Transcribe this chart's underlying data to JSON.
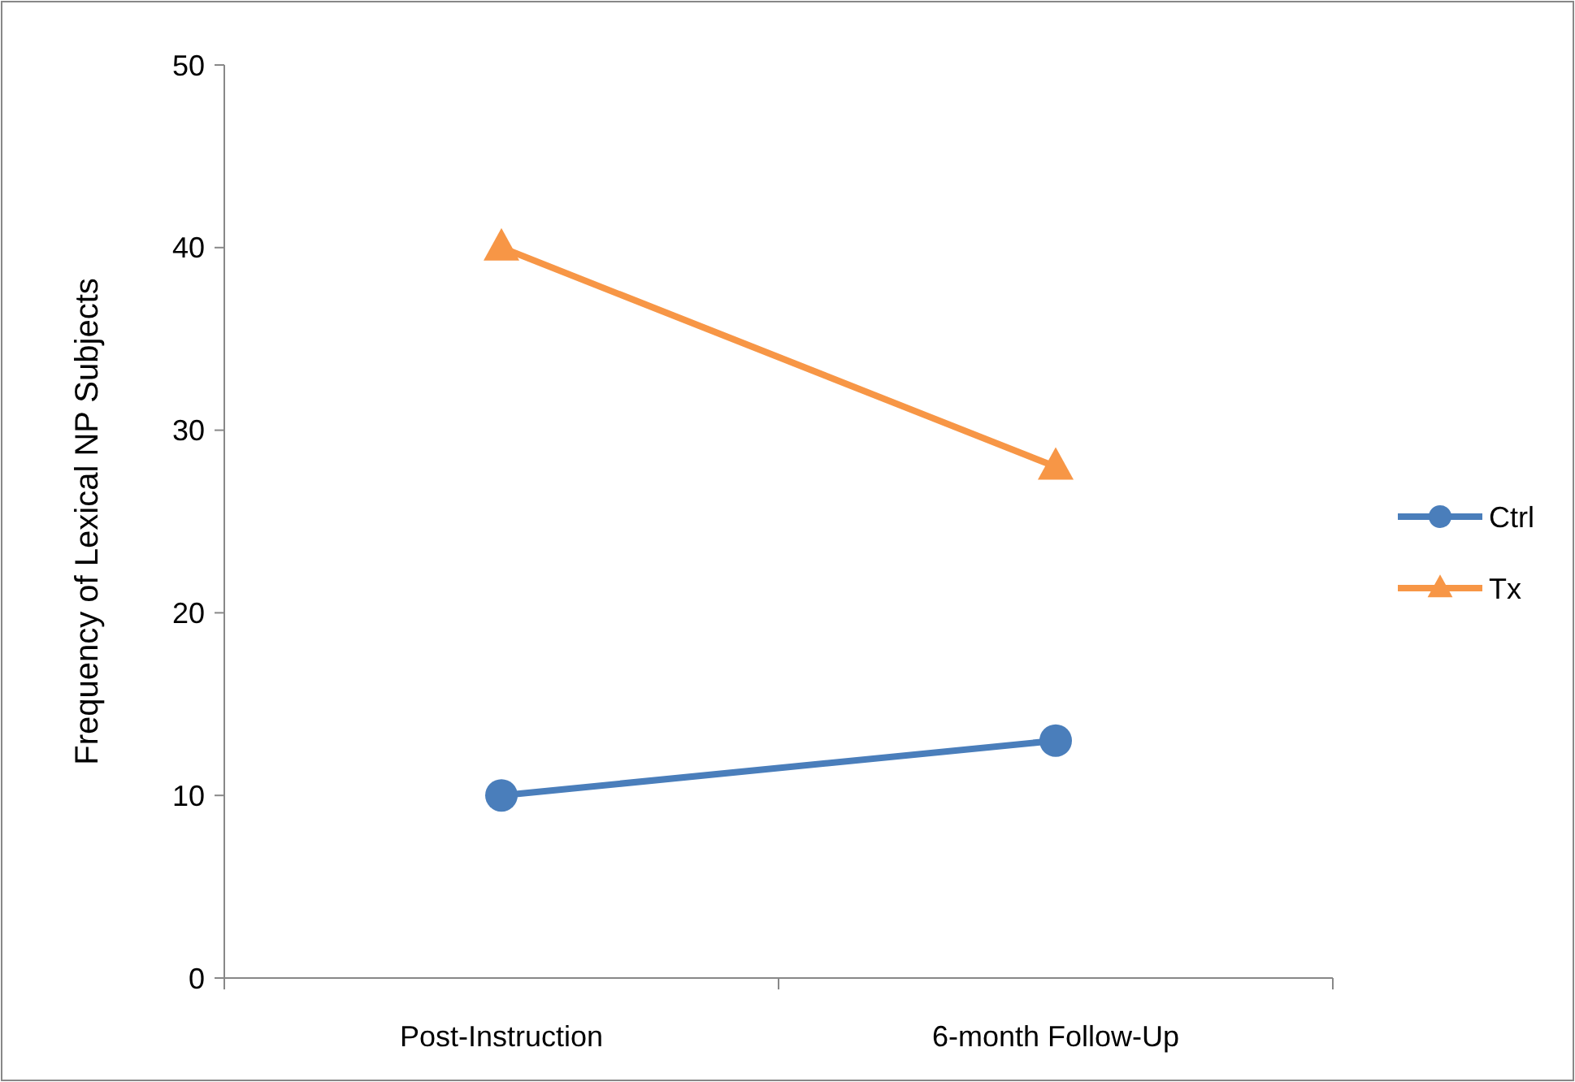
{
  "chart_data": {
    "type": "line",
    "ylabel": "Frequency of Lexical NP Subjects",
    "categories": [
      "Post-Instruction",
      "6-month Follow-Up"
    ],
    "series": [
      {
        "name": "Ctrl",
        "color": "#4a7ebb",
        "values": [
          10,
          13
        ],
        "marker": "circle"
      },
      {
        "name": "Tx",
        "color": "#f79646",
        "values": [
          40,
          28
        ],
        "marker": "triangle"
      }
    ],
    "ylim": [
      0,
      50
    ],
    "yticks": [
      0,
      10,
      20,
      30,
      40,
      50
    ],
    "grid": false,
    "legend": "right",
    "line_style": "solid"
  }
}
